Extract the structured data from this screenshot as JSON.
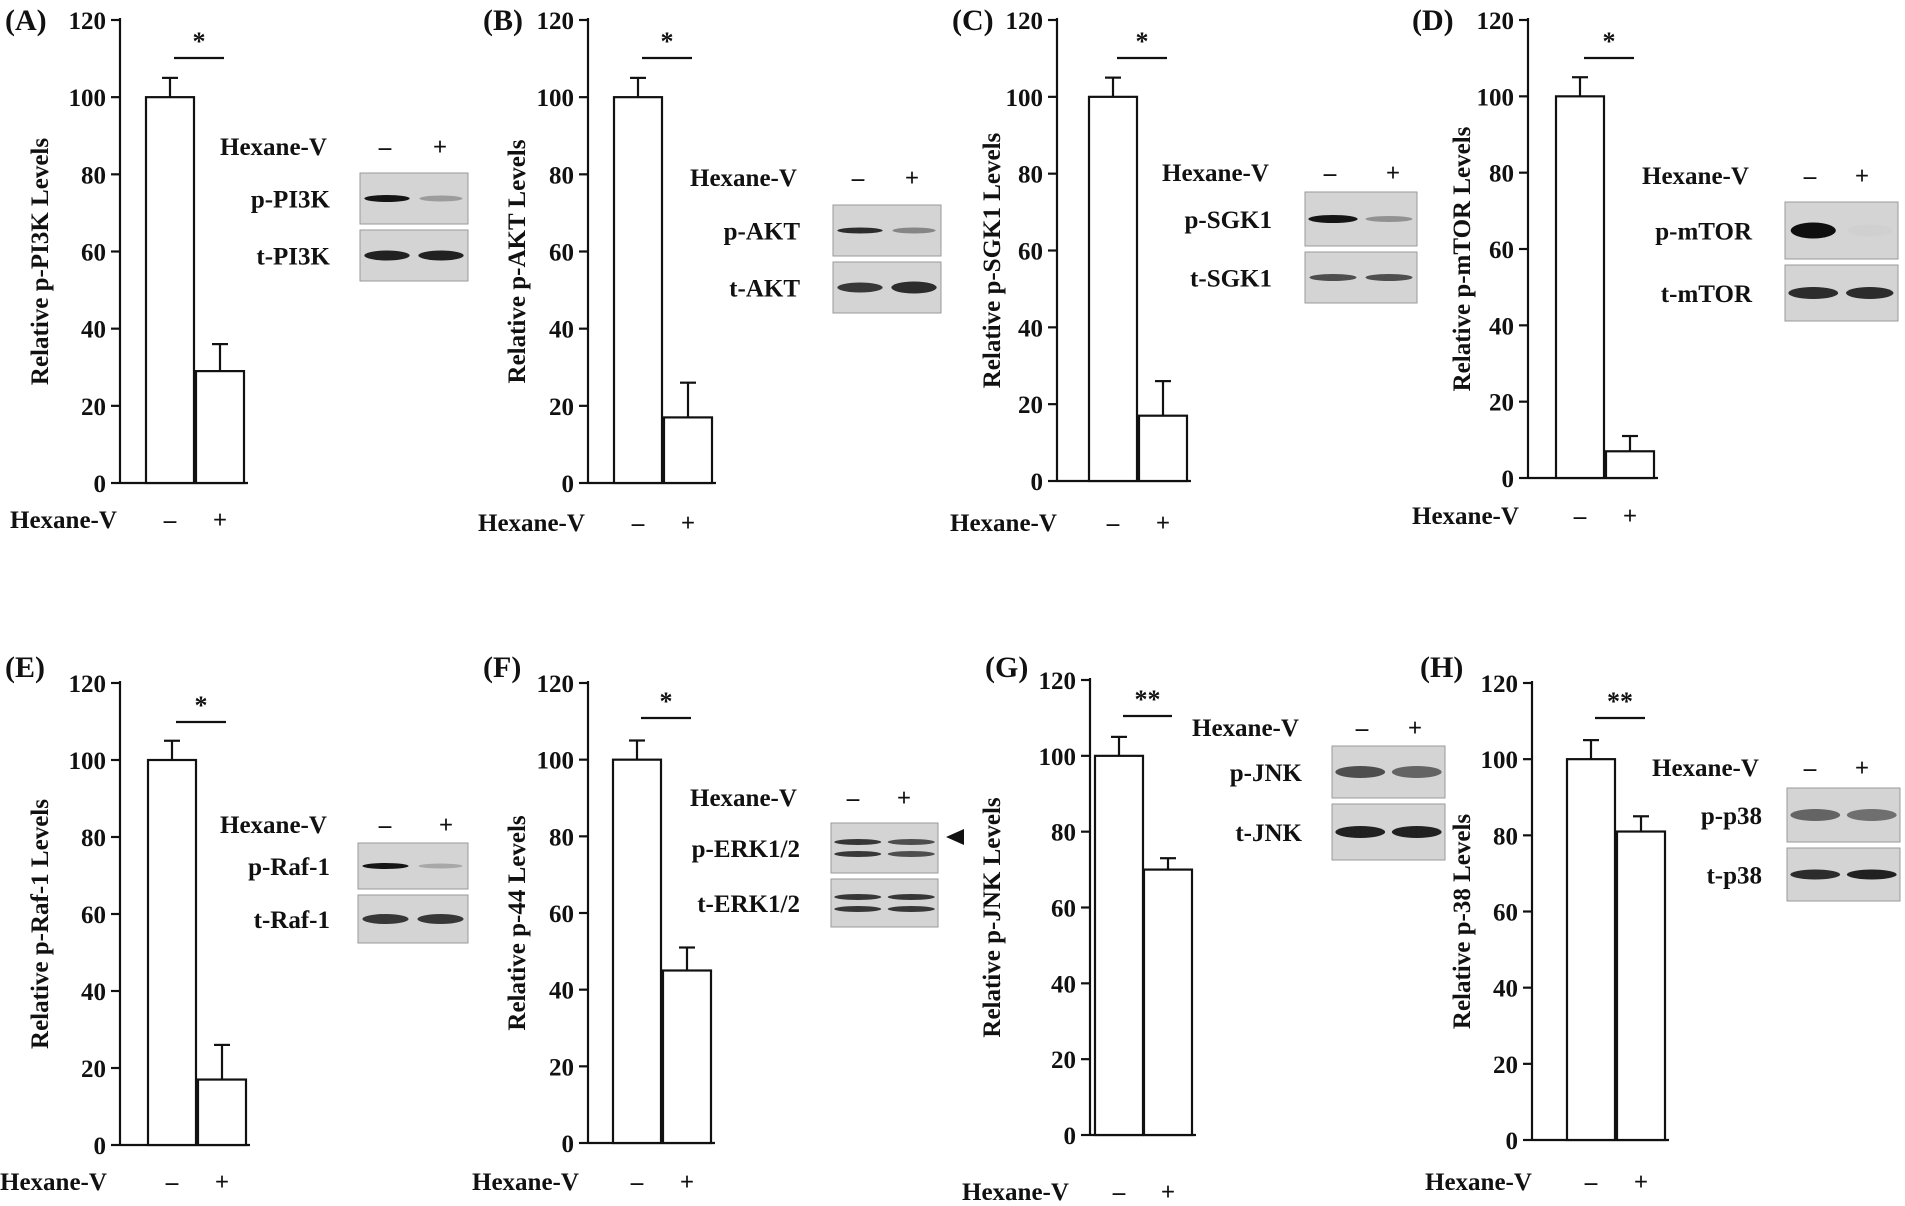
{
  "x_axis_label": "Hexane-V",
  "blot_treatment_label": "Hexane-V",
  "chart_data": [
    {
      "type": "bar",
      "panel": "(A)",
      "categories": [
        "–",
        "+"
      ],
      "values": [
        100,
        29
      ],
      "errors": [
        5,
        7
      ],
      "significance": "*",
      "ylabel": "Relative p-PI3K  Levels",
      "yticks": [
        0,
        20,
        40,
        60,
        80,
        100,
        120
      ],
      "ylim": [
        0,
        120
      ],
      "blot": {
        "lanes": [
          "–",
          "+"
        ],
        "rows": [
          "p-PI3K",
          "t-PI3K"
        ]
      }
    },
    {
      "type": "bar",
      "panel": "(B)",
      "categories": [
        "–",
        "+"
      ],
      "values": [
        100,
        17
      ],
      "errors": [
        5,
        9
      ],
      "significance": "*",
      "ylabel": "Relative p-AKT  Levels",
      "yticks": [
        0,
        20,
        40,
        60,
        80,
        100,
        120
      ],
      "ylim": [
        0,
        120
      ],
      "blot": {
        "lanes": [
          "–",
          "+"
        ],
        "rows": [
          "p-AKT",
          "t-AKT"
        ]
      }
    },
    {
      "type": "bar",
      "panel": "(C)",
      "categories": [
        "–",
        "+"
      ],
      "values": [
        100,
        17
      ],
      "errors": [
        5,
        9
      ],
      "significance": "*",
      "ylabel": "Relative p-SGK1  Levels",
      "yticks": [
        0,
        20,
        40,
        60,
        80,
        100,
        120
      ],
      "ylim": [
        0,
        120
      ],
      "blot": {
        "lanes": [
          "–",
          "+"
        ],
        "rows": [
          "p-SGK1",
          "t-SGK1"
        ]
      }
    },
    {
      "type": "bar",
      "panel": "(D)",
      "categories": [
        "–",
        "+"
      ],
      "values": [
        100,
        7
      ],
      "errors": [
        5,
        4
      ],
      "significance": "*",
      "ylabel": "Relative p-mTOR  Levels",
      "yticks": [
        0,
        20,
        40,
        60,
        80,
        100,
        120
      ],
      "ylim": [
        0,
        120
      ],
      "blot": {
        "lanes": [
          "–",
          "+"
        ],
        "rows": [
          "p-mTOR",
          "t-mTOR"
        ]
      }
    },
    {
      "type": "bar",
      "panel": "(E)",
      "categories": [
        "–",
        "+"
      ],
      "values": [
        100,
        17
      ],
      "errors": [
        5,
        9
      ],
      "significance": "*",
      "ylabel": "Relative p-Raf-1  Levels",
      "yticks": [
        0,
        20,
        40,
        60,
        80,
        100,
        120
      ],
      "ylim": [
        0,
        120
      ],
      "blot": {
        "lanes": [
          "–",
          "+"
        ],
        "rows": [
          "p-Raf-1",
          "t-Raf-1"
        ]
      }
    },
    {
      "type": "bar",
      "panel": "(F)",
      "categories": [
        "–",
        "+"
      ],
      "values": [
        100,
        45
      ],
      "errors": [
        5,
        6
      ],
      "significance": "*",
      "ylabel": "Relative p-44  Levels",
      "yticks": [
        0,
        20,
        40,
        60,
        80,
        100,
        120
      ],
      "ylim": [
        0,
        120
      ],
      "blot": {
        "lanes": [
          "–",
          "+"
        ],
        "rows": [
          "p-ERK1/2",
          "t-ERK1/2"
        ],
        "arrow": true
      }
    },
    {
      "type": "bar",
      "panel": "(G)",
      "categories": [
        "–",
        "+"
      ],
      "values": [
        100,
        70
      ],
      "errors": [
        5,
        3
      ],
      "significance": "**",
      "ylabel": "Relative p-JNK  Levels",
      "yticks": [
        0,
        20,
        40,
        60,
        80,
        100,
        120
      ],
      "ylim": [
        0,
        120
      ],
      "blot": {
        "lanes": [
          "–",
          "+"
        ],
        "rows": [
          "p-JNK",
          "t-JNK"
        ]
      }
    },
    {
      "type": "bar",
      "panel": "(H)",
      "categories": [
        "–",
        "+"
      ],
      "values": [
        100,
        81
      ],
      "errors": [
        5,
        4
      ],
      "significance": "**",
      "ylabel": "Relative p-38 Levels",
      "yticks": [
        0,
        20,
        40,
        60,
        80,
        100,
        120
      ],
      "ylim": [
        0,
        120
      ],
      "blot": {
        "lanes": [
          "–",
          "+"
        ],
        "rows": [
          "p-p38",
          "t-p38"
        ]
      }
    }
  ]
}
